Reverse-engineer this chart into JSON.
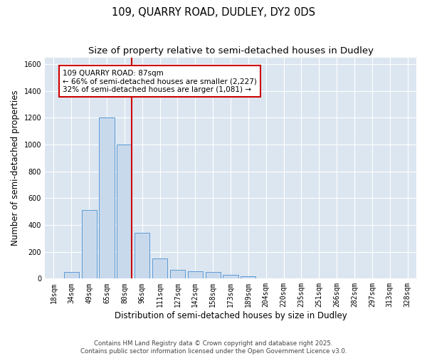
{
  "title1": "109, QUARRY ROAD, DUDLEY, DY2 0DS",
  "title2": "Size of property relative to semi-detached houses in Dudley",
  "xlabel": "Distribution of semi-detached houses by size in Dudley",
  "ylabel": "Number of semi-detached properties",
  "categories": [
    "18sqm",
    "34sqm",
    "49sqm",
    "65sqm",
    "80sqm",
    "96sqm",
    "111sqm",
    "127sqm",
    "142sqm",
    "158sqm",
    "173sqm",
    "189sqm",
    "204sqm",
    "220sqm",
    "235sqm",
    "251sqm",
    "266sqm",
    "282sqm",
    "297sqm",
    "313sqm",
    "328sqm"
  ],
  "values": [
    0,
    50,
    510,
    1200,
    1000,
    340,
    150,
    65,
    55,
    50,
    28,
    18,
    0,
    0,
    0,
    0,
    0,
    0,
    0,
    0,
    0
  ],
  "bar_color": "#c9d9ec",
  "bar_edge_color": "#5b9bd5",
  "property_line_color": "#cc0000",
  "annotation_text": "109 QUARRY ROAD: 87sqm\n← 66% of semi-detached houses are smaller (2,227)\n32% of semi-detached houses are larger (1,081) →",
  "annotation_box_color": "#cc0000",
  "ylim": [
    0,
    1650
  ],
  "yticks": [
    0,
    200,
    400,
    600,
    800,
    1000,
    1200,
    1400,
    1600
  ],
  "grid_color": "#dce6f1",
  "bg_color": "#dce6f1",
  "footer_text": "Contains HM Land Registry data © Crown copyright and database right 2025.\nContains public sector information licensed under the Open Government Licence v3.0.",
  "title_fontsize": 10.5,
  "subtitle_fontsize": 9.5,
  "axis_label_fontsize": 8.5,
  "tick_fontsize": 7,
  "annotation_fontsize": 7.5,
  "footer_fontsize": 6.2
}
